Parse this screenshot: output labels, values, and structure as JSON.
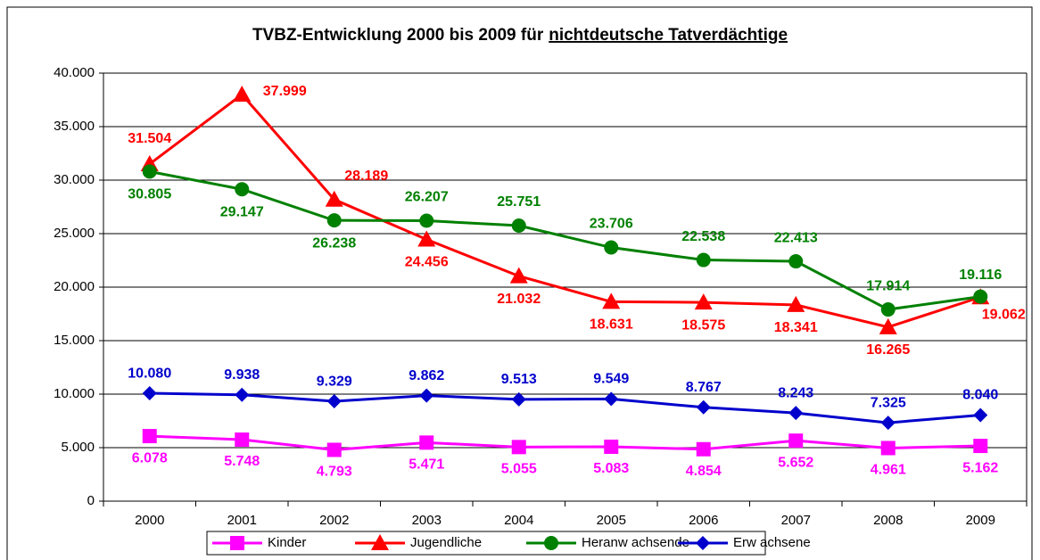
{
  "chart_data": {
    "type": "line",
    "title": [
      "TVBZ-Entwicklung 2000 bis 2009 für",
      "nichtdeutsche Tatverdächtige"
    ],
    "categories": [
      "2000",
      "2001",
      "2002",
      "2003",
      "2004",
      "2005",
      "2006",
      "2007",
      "2008",
      "2009"
    ],
    "ylim": [
      0,
      40000
    ],
    "yticks": [
      {
        "value": 0,
        "label": "0"
      },
      {
        "value": 5000,
        "label": "5.000"
      },
      {
        "value": 10000,
        "label": "10.000"
      },
      {
        "value": 15000,
        "label": "15.000"
      },
      {
        "value": 20000,
        "label": "20.000"
      },
      {
        "value": 25000,
        "label": "25.000"
      },
      {
        "value": 30000,
        "label": "30.000"
      },
      {
        "value": 35000,
        "label": "35.000"
      },
      {
        "value": 40000,
        "label": "40.000"
      }
    ],
    "grid": true,
    "legend": "bottom",
    "series": [
      {
        "name": "Kinder",
        "color": "#ff00ff",
        "marker": "square",
        "values": [
          6078,
          5748,
          4793,
          5471,
          5055,
          5083,
          4854,
          5652,
          4961,
          5162
        ],
        "value_labels": [
          "6.078",
          "5.748",
          "4.793",
          "5.471",
          "5.055",
          "5.083",
          "4.854",
          "5.652",
          "4.961",
          "5.162"
        ]
      },
      {
        "name": "Jugendliche",
        "color": "#ff0000",
        "marker": "triangle",
        "values": [
          31504,
          37999,
          28189,
          24456,
          21032,
          18631,
          18575,
          18341,
          16265,
          19062
        ],
        "value_labels": [
          "31.504",
          "37.999",
          "28.189",
          "24.456",
          "21.032",
          "18.631",
          "18.575",
          "18.341",
          "16.265",
          "19.062"
        ]
      },
      {
        "name": "Heranw achsende",
        "color": "#008000",
        "marker": "circle",
        "values": [
          30805,
          29147,
          26238,
          26207,
          25751,
          23706,
          22538,
          22413,
          17914,
          19116
        ],
        "value_labels": [
          "30.805",
          "29.147",
          "26.238",
          "26.207",
          "25.751",
          "23.706",
          "22.538",
          "22.413",
          "17.914",
          "19.116"
        ]
      },
      {
        "name": "Erw achsene",
        "color": "#0000cc",
        "marker": "diamond",
        "values": [
          10080,
          9938,
          9329,
          9862,
          9513,
          9549,
          8767,
          8243,
          7325,
          8040
        ],
        "value_labels": [
          "10.080",
          "9.938",
          "9.329",
          "9.862",
          "9.513",
          "9.549",
          "8.767",
          "8.243",
          "7.325",
          "8.040"
        ]
      }
    ]
  }
}
